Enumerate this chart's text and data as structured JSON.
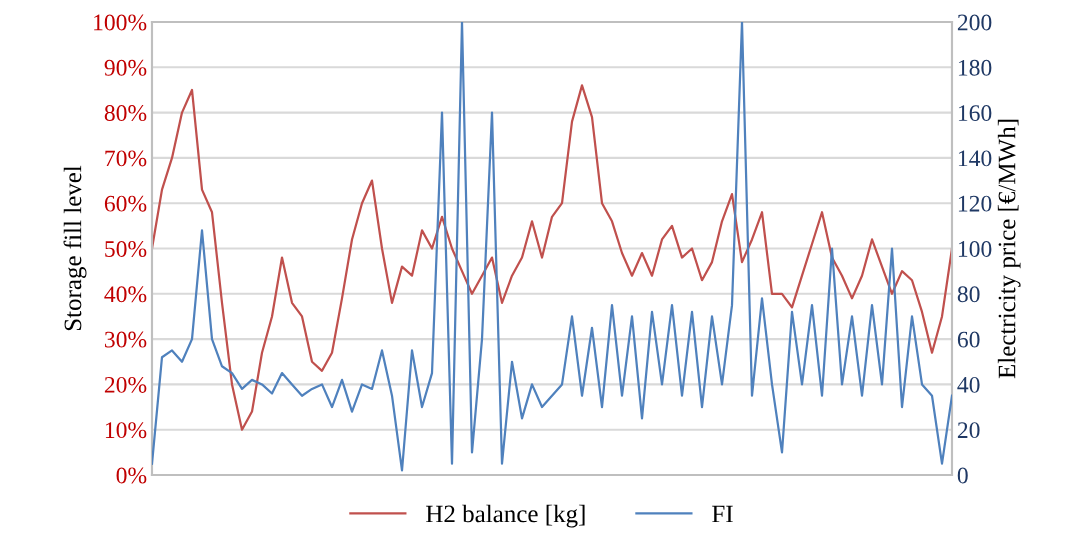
{
  "chart_data": {
    "type": "line",
    "categories": [
      null,
      null,
      null,
      null,
      null,
      null,
      null,
      null,
      null,
      null,
      null,
      null,
      null,
      null,
      null,
      null,
      null,
      null,
      null,
      null,
      null,
      null,
      null,
      null,
      null,
      null,
      null,
      null,
      null,
      null,
      null,
      null,
      null,
      null,
      null,
      null,
      null,
      null,
      null,
      null,
      null,
      null,
      null,
      null,
      null,
      null,
      null,
      null,
      null,
      null,
      null,
      null,
      null,
      null,
      null,
      null,
      null,
      null,
      null,
      null,
      null,
      null,
      null,
      null,
      null,
      null,
      null,
      null,
      null,
      null,
      null,
      null,
      null,
      null,
      null,
      null,
      null,
      null,
      null,
      null,
      null
    ],
    "series": [
      {
        "name": "H2 balance [kg]",
        "color": "#c0504d",
        "values": [
          50,
          63,
          70,
          80,
          85,
          63,
          58,
          38,
          20,
          10,
          14,
          27,
          35,
          48,
          38,
          35,
          25,
          23,
          27,
          39,
          52,
          60,
          65,
          50,
          38,
          46,
          44,
          54,
          50,
          57,
          50,
          45,
          40,
          44,
          48,
          38,
          44,
          48,
          56,
          48,
          57,
          60,
          78,
          86,
          79,
          60,
          56,
          49,
          44,
          49,
          44,
          52,
          55,
          48,
          50,
          43,
          47,
          56,
          62,
          47,
          52,
          58,
          40,
          40,
          37,
          44,
          51,
          58,
          48,
          44,
          39,
          44,
          52,
          46,
          40,
          45,
          43,
          36,
          27,
          35,
          50
        ]
      },
      {
        "name": "FI",
        "color": "#4f81bd",
        "axis": "y2",
        "values": [
          5,
          52,
          55,
          50,
          60,
          108,
          60,
          48,
          45,
          38,
          42,
          40,
          36,
          45,
          40,
          35,
          38,
          40,
          30,
          42,
          28,
          40,
          38,
          55,
          35,
          2,
          55,
          30,
          45,
          160,
          5,
          200,
          10,
          60,
          160,
          5,
          50,
          25,
          40,
          30,
          35,
          40,
          70,
          35,
          65,
          30,
          75,
          35,
          70,
          25,
          72,
          40,
          75,
          35,
          72,
          30,
          70,
          40,
          75,
          200,
          35,
          78,
          40,
          10,
          72,
          40,
          75,
          35,
          100,
          40,
          70,
          35,
          75,
          40,
          100,
          30,
          70,
          40,
          35,
          5,
          35
        ]
      }
    ],
    "ylabel": "Storage fill level",
    "y2label": "Electricity price [€/MWh]",
    "ylim": [
      0,
      100
    ],
    "yticks": [
      {
        "value": 0,
        "label": "0%"
      },
      {
        "value": 10,
        "label": "10%"
      },
      {
        "value": 20,
        "label": "20%"
      },
      {
        "value": 30,
        "label": "30%"
      },
      {
        "value": 40,
        "label": "40%"
      },
      {
        "value": 50,
        "label": "50%"
      },
      {
        "value": 60,
        "label": "60%"
      },
      {
        "value": 70,
        "label": "70%"
      },
      {
        "value": 80,
        "label": "80%"
      },
      {
        "value": 90,
        "label": "90%"
      },
      {
        "value": 100,
        "label": "100%"
      }
    ],
    "y2lim": [
      0,
      200
    ],
    "y2ticks": [
      0,
      20,
      40,
      60,
      80,
      100,
      120,
      140,
      160,
      180,
      200
    ],
    "grid": "y",
    "legend": "bottom",
    "marker": "none",
    "line_style": "solid"
  }
}
